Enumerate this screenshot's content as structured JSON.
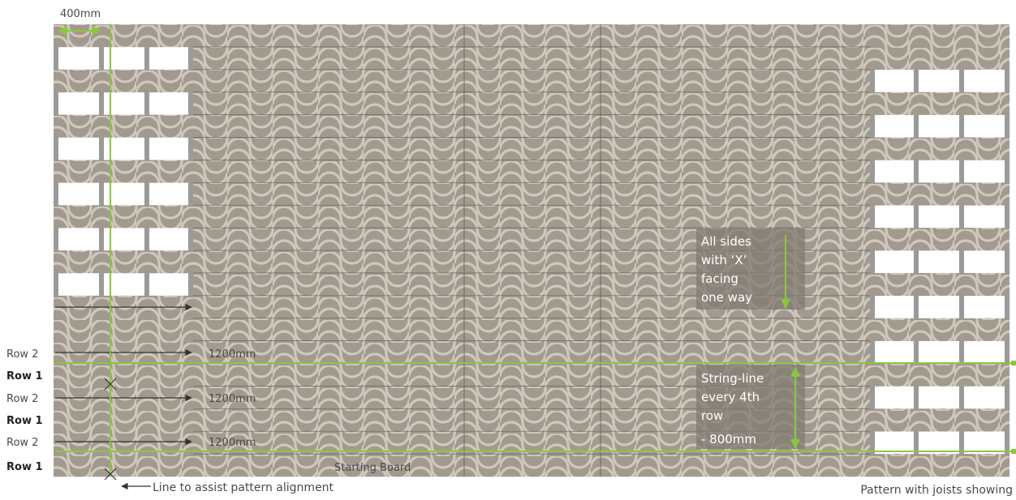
{
  "diagram": {
    "joist_spacing_label": "400mm",
    "side_note_lines": [
      "All sides",
      "with ‘X’",
      "facing",
      "one way"
    ],
    "string_line_lines": [
      "String-line",
      "every 4th",
      "row",
      "- 800mm"
    ],
    "row_labels": [
      "Row 2",
      "Row 1",
      "Row 2",
      "Row 1",
      "Row 2",
      "Row 1"
    ],
    "length_labels": [
      "1200mm",
      "1200mm",
      "1200mm"
    ],
    "starting_board_label": "Starting Board",
    "alignment_note": "Line to assist pattern alignment",
    "joists_caption": "Pattern with joists showing",
    "colors": {
      "tile_bg": "#a29a8e",
      "tile_arc": "#cfc8bc",
      "joist": "#9a9a9a",
      "accent_green": "#8cc63f",
      "text": "#4a4a4a",
      "note_box": "#7f7a72"
    }
  }
}
